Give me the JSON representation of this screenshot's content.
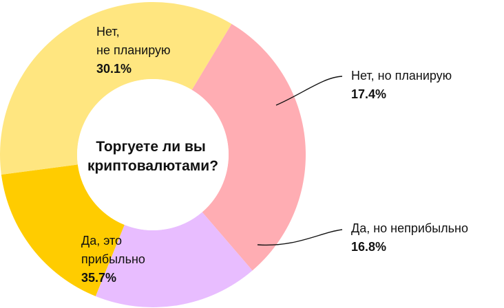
{
  "chart_data": {
    "type": "pie",
    "title_lines": [
      "Торгуете ли вы",
      "криптовалютами?"
    ],
    "slices": [
      {
        "label_lines": [
          "Нет,",
          "не планирую"
        ],
        "value_text": "30.1%",
        "value": 30.1,
        "color": "#ffadb3"
      },
      {
        "label_lines": [
          "Нет, но планирую"
        ],
        "value_text": "17.4%",
        "value": 17.4,
        "color": "#e8bdff"
      },
      {
        "label_lines": [
          "Да, но неприбыльно"
        ],
        "value_text": "16.8%",
        "value": 16.8,
        "color": "#ffcc00"
      },
      {
        "label_lines": [
          "Да, это",
          "прибыльно"
        ],
        "value_text": "35.7%",
        "value": 35.7,
        "color": "#ffe680"
      }
    ]
  }
}
